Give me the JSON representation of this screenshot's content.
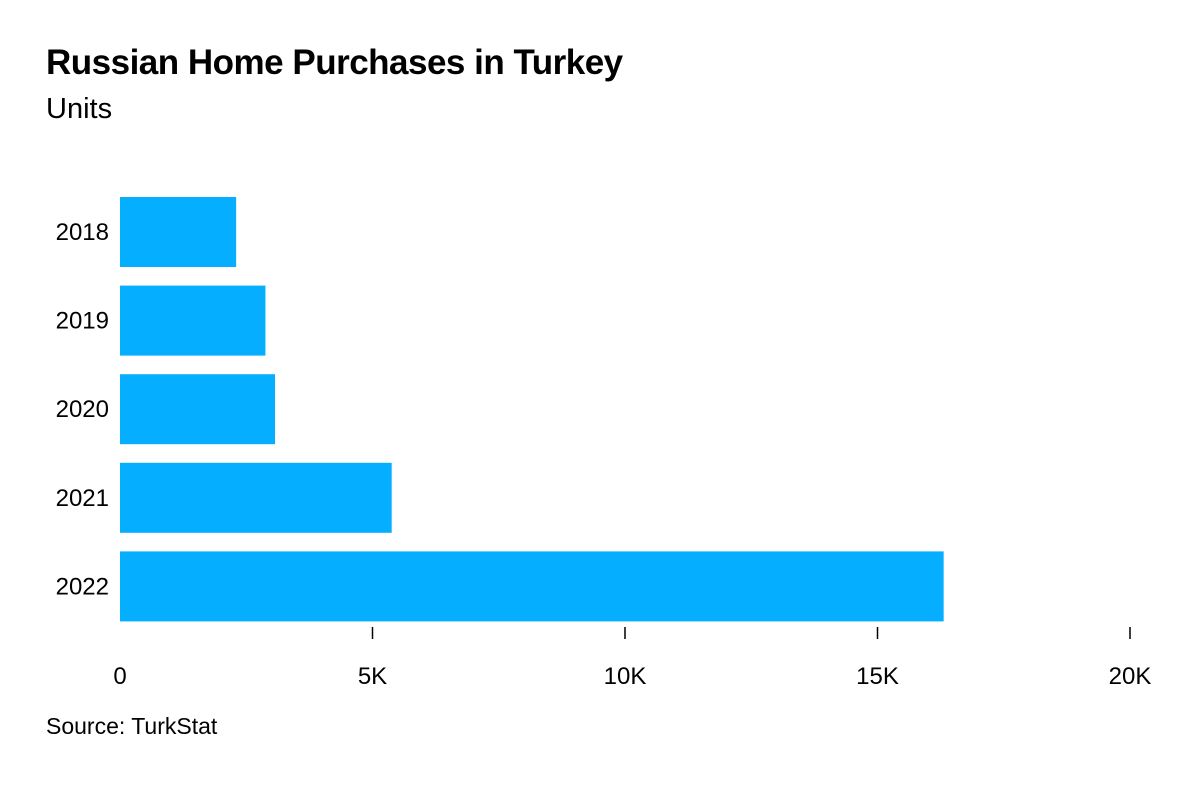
{
  "title": "Russian Home Purchases in Turkey",
  "subtitle": "Units",
  "source": "Source: TurkStat",
  "colors": {
    "bar": "#06aeff",
    "axis": "#000000"
  },
  "chart_data": {
    "type": "bar",
    "orientation": "horizontal",
    "categories": [
      "2018",
      "2019",
      "2020",
      "2021",
      "2022"
    ],
    "values": [
      2300,
      2880,
      3070,
      5380,
      16310
    ],
    "xlim": [
      0,
      20000
    ],
    "x_ticks": [
      0,
      5000,
      10000,
      15000,
      20000
    ],
    "x_tick_labels": [
      "0",
      "5K",
      "10K",
      "15K",
      "20K"
    ],
    "grid": false,
    "legend": "none"
  }
}
